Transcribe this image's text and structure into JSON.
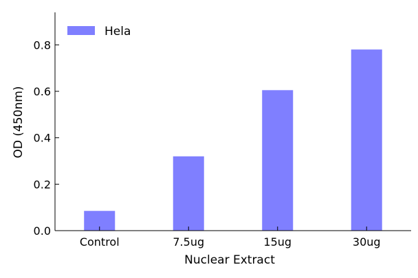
{
  "chart_data": {
    "type": "bar",
    "categories": [
      "Control",
      "7.5ug",
      "15ug",
      "30ug"
    ],
    "series": [
      {
        "name": "Hela",
        "values": [
          0.085,
          0.32,
          0.605,
          0.78
        ],
        "color": "#7f7fff"
      }
    ],
    "xlabel": "Nuclear Extract",
    "ylabel": "OD (450nm)",
    "ylim": [
      0,
      0.94
    ],
    "yticks": [
      0.0,
      0.2,
      0.4,
      0.6,
      0.8
    ],
    "ytick_labels": [
      "0.0",
      "0.2",
      "0.4",
      "0.6",
      "0.8"
    ],
    "legend": {
      "placement": "top-left"
    },
    "grid": false
  }
}
